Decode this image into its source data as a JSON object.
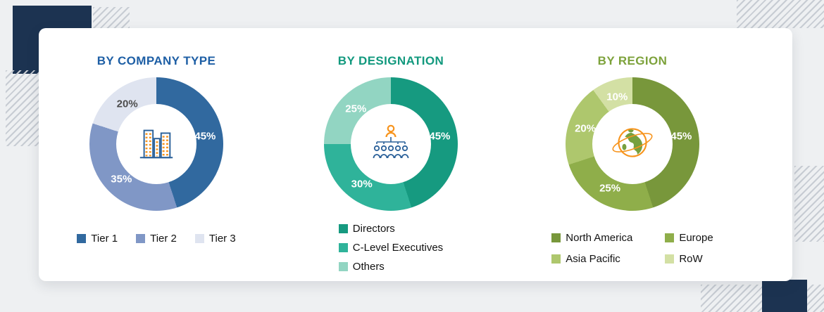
{
  "accent": {
    "navy": "#1c3351",
    "stripe": "#c7ccd3",
    "background": "#eef0f2",
    "card": "#ffffff",
    "icon_orange": "#f7941d",
    "icon_blue": "#2a6099",
    "icon_green": "#76a03f"
  },
  "chart_data": [
    {
      "type": "pie",
      "donut": true,
      "title": "BY COMPANY TYPE",
      "title_color": "#1e5fa5",
      "labels": [
        "Tier 1",
        "Tier 2",
        "Tier 3"
      ],
      "values": [
        45,
        35,
        20
      ],
      "unit": "%",
      "colors": [
        "#31699f",
        "#8097c6",
        "#dfe4f0"
      ],
      "value_label_colors": [
        "#ffffff",
        "#ffffff",
        "#4d4d4d"
      ],
      "center_icon": "buildings",
      "legend_layout": "row",
      "start_angle_deg": 0,
      "direction": "clockwise"
    },
    {
      "type": "pie",
      "donut": true,
      "title": "BY DESIGNATION",
      "title_color": "#12997e",
      "labels": [
        "Directors",
        "C-Level Executives",
        "Others"
      ],
      "values": [
        45,
        30,
        25
      ],
      "unit": "%",
      "colors": [
        "#169a80",
        "#2fb39a",
        "#92d5c2"
      ],
      "value_label_colors": [
        "#ffffff",
        "#ffffff",
        "#ffffff"
      ],
      "center_icon": "globe-people-team",
      "legend_layout": "column",
      "start_angle_deg": 0,
      "direction": "clockwise"
    },
    {
      "type": "pie",
      "donut": true,
      "title": "BY REGION",
      "title_color": "#7da23b",
      "labels": [
        "North America",
        "Europe",
        "Asia Pacific",
        "RoW"
      ],
      "values": [
        45,
        25,
        20,
        10
      ],
      "unit": "%",
      "colors": [
        "#78973b",
        "#8fae4a",
        "#aec76d",
        "#d3e0a4"
      ],
      "value_label_colors": [
        "#ffffff",
        "#ffffff",
        "#ffffff",
        "#ffffff"
      ],
      "center_icon": "globe",
      "legend_layout": "grid-2col",
      "start_angle_deg": 0,
      "direction": "clockwise"
    }
  ]
}
